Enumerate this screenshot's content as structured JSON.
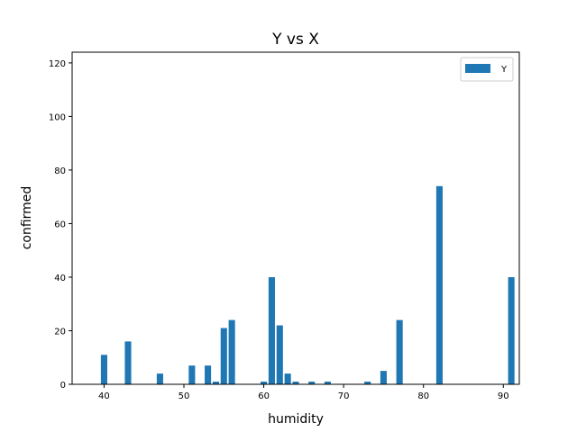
{
  "chart_data": {
    "type": "bar",
    "title": "Y vs X",
    "xlabel": "humidity",
    "ylabel": "confirmed",
    "xlim": [
      36,
      92
    ],
    "ylim": [
      0,
      124
    ],
    "xticks": [
      40,
      50,
      60,
      70,
      80,
      90
    ],
    "yticks": [
      0,
      20,
      40,
      60,
      80,
      100,
      120
    ],
    "grid": false,
    "legend_position": "top-right",
    "color": "#1f77b4",
    "series": [
      {
        "name": "Y",
        "x": [
          40,
          43,
          47,
          51,
          53,
          54,
          55,
          56,
          60,
          61,
          62,
          63,
          64,
          66,
          68,
          73,
          75,
          77,
          82,
          91
        ],
        "values": [
          11,
          16,
          4,
          7,
          7,
          1,
          21,
          24,
          1,
          40,
          22,
          4,
          1,
          1,
          1,
          1,
          5,
          24,
          74,
          40
        ]
      }
    ]
  }
}
